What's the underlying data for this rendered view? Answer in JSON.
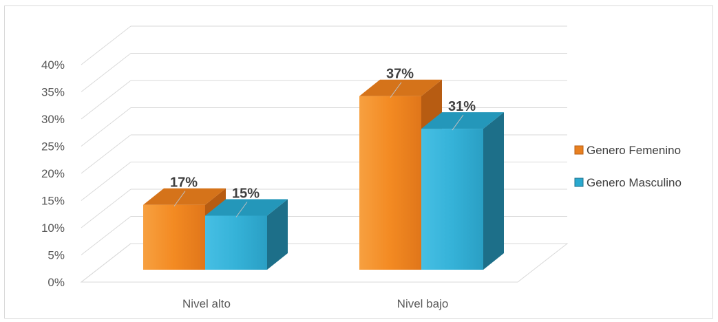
{
  "chart_data": {
    "type": "bar",
    "bar_style": "3d-clustered-column",
    "categories": [
      "Nivel alto",
      "Nivel bajo"
    ],
    "series": [
      {
        "name": "Genero Femenino",
        "values": [
          17,
          37
        ],
        "labels": [
          "17%",
          "37%"
        ],
        "color": "#f0841e"
      },
      {
        "name": "Genero Masculino",
        "values": [
          15,
          31
        ],
        "labels": [
          "15%",
          "31%"
        ],
        "color": "#2aa9cf"
      }
    ],
    "y_ticks": [
      "0%",
      "5%",
      "10%",
      "15%",
      "20%",
      "25%",
      "30%",
      "35%",
      "40%"
    ],
    "ylim": [
      0,
      40
    ],
    "grid": true,
    "legend_position": "right",
    "title": "",
    "xlabel": "",
    "ylabel": ""
  }
}
